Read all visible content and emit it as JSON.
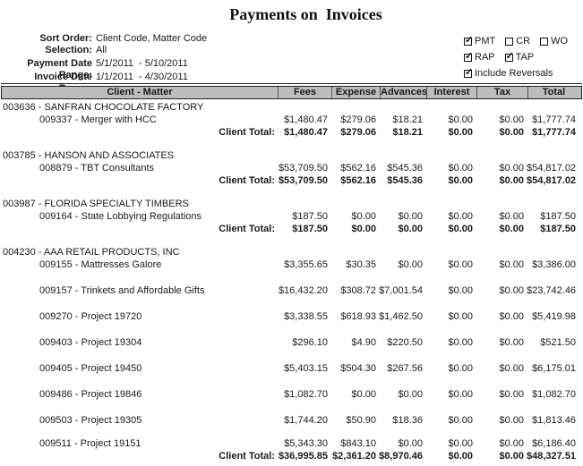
{
  "title": "Payments on  Invoices",
  "filters": {
    "sort_order": {
      "label": "Sort Order:",
      "value": "Client Code, Matter Code"
    },
    "selection": {
      "label": "Selection:",
      "value": "All"
    },
    "payment_date_range": {
      "label": "Payment Date Range:",
      "start": "5/1/2011",
      "end": "- 5/10/2011"
    },
    "invoice_date_range": {
      "label": "Invoice Date Range:",
      "start": "1/1/2011",
      "end": "- 4/30/2011"
    }
  },
  "options": {
    "rows": [
      [
        {
          "label": "PMT",
          "checked": true
        },
        {
          "label": "CR",
          "checked": false
        },
        {
          "label": "WO",
          "checked": false
        }
      ],
      [
        {
          "label": "RAP",
          "checked": true
        },
        {
          "label": "TAP",
          "checked": true
        }
      ],
      [
        {
          "label": "Include Reversals",
          "checked": true
        }
      ]
    ]
  },
  "table": {
    "columns": [
      "Client - Matter",
      "Fees",
      "Expense",
      "Advances",
      "Interest",
      "Tax",
      "Total"
    ],
    "rows": [
      {
        "type": "client",
        "label": "003636 - SANFRAN CHOCOLATE FACTORY"
      },
      {
        "type": "matter",
        "label": "009337 - Merger with HCC",
        "values": [
          "$1,480.47",
          "$279.06",
          "$18.21",
          "$0.00",
          "$0.00",
          "$1,777.74"
        ]
      },
      {
        "type": "total",
        "label": "Client Total:",
        "values": [
          "$1,480.47",
          "$279.06",
          "$18.21",
          "$0.00",
          "$0.00",
          "$1,777.74"
        ]
      },
      {
        "type": "spacer",
        "size": "sm"
      },
      {
        "type": "client",
        "label": "003785 - HANSON AND ASSOCIATES"
      },
      {
        "type": "matter",
        "label": "008879 - TBT Consultants",
        "values": [
          "$53,709.50",
          "$562.16",
          "$545.36",
          "$0.00",
          "$0.00",
          "$54,817.02"
        ]
      },
      {
        "type": "total",
        "label": "Client Total:",
        "values": [
          "$53,709.50",
          "$562.16",
          "$545.36",
          "$0.00",
          "$0.00",
          "$54,817.02"
        ]
      },
      {
        "type": "spacer",
        "size": "sm"
      },
      {
        "type": "client",
        "label": "003987 - FLORIDA SPECIALTY TIMBERS"
      },
      {
        "type": "matter",
        "label": "009164 - State Lobbying Regulations",
        "values": [
          "$187.50",
          "$0.00",
          "$0.00",
          "$0.00",
          "$0.00",
          "$187.50"
        ]
      },
      {
        "type": "total",
        "label": "Client Total:",
        "values": [
          "$187.50",
          "$0.00",
          "$0.00",
          "$0.00",
          "$0.00",
          "$187.50"
        ]
      },
      {
        "type": "spacer",
        "size": "sm"
      },
      {
        "type": "client",
        "label": "004230 - AAA RETAIL PRODUCTS, INC"
      },
      {
        "type": "matter",
        "label": "009155 - Mattresses Galore",
        "values": [
          "$3,355.65",
          "$30.35",
          "$0.00",
          "$0.00",
          "$0.00",
          "$3,386.00"
        ]
      },
      {
        "type": "spacer",
        "size": "lg"
      },
      {
        "type": "matter",
        "label": "009157 - Trinkets and Affordable Gifts",
        "values": [
          "$16,432.20",
          "$308.72",
          "$7,001.54",
          "$0.00",
          "$0.00",
          "$23,742.46"
        ]
      },
      {
        "type": "spacer",
        "size": "lg"
      },
      {
        "type": "matter",
        "label": "009270 - Project 19720",
        "values": [
          "$3,338.55",
          "$618.93",
          "$1,462.50",
          "$0.00",
          "$0.00",
          "$5,419.98"
        ]
      },
      {
        "type": "spacer",
        "size": "lg"
      },
      {
        "type": "matter",
        "label": "009403 - Project 19304",
        "values": [
          "$296.10",
          "$4.90",
          "$220.50",
          "$0.00",
          "$0.00",
          "$521.50"
        ]
      },
      {
        "type": "spacer",
        "size": "lg"
      },
      {
        "type": "matter",
        "label": "009405 - Project 19450",
        "values": [
          "$5,403.15",
          "$504.30",
          "$267.56",
          "$0.00",
          "$0.00",
          "$6,175.01"
        ]
      },
      {
        "type": "spacer",
        "size": "lg"
      },
      {
        "type": "matter",
        "label": "009486 - Project 19846",
        "values": [
          "$1,082.70",
          "$0.00",
          "$0.00",
          "$0.00",
          "$0.00",
          "$1,082.70"
        ]
      },
      {
        "type": "spacer",
        "size": "lg"
      },
      {
        "type": "matter",
        "label": "009503 - Project 19305",
        "values": [
          "$1,744.20",
          "$50.90",
          "$18.36",
          "$0.00",
          "$0.00",
          "$1,813.46"
        ]
      },
      {
        "type": "spacer",
        "size": "sm"
      },
      {
        "type": "matter",
        "label": "009511 - Project 19151",
        "values": [
          "$5,343.30",
          "$843.10",
          "$0.00",
          "$0.00",
          "$0.00",
          "$6,186.40"
        ]
      },
      {
        "type": "total",
        "label": "Client Total:",
        "values": [
          "$36,995.85",
          "$2,361.20",
          "$8,970.46",
          "$0.00",
          "$0.00",
          "$48,327.51"
        ]
      }
    ]
  },
  "colors": {
    "header_bg": "#bdbdbd",
    "border": "#222222",
    "text": "#1a1a1a"
  }
}
